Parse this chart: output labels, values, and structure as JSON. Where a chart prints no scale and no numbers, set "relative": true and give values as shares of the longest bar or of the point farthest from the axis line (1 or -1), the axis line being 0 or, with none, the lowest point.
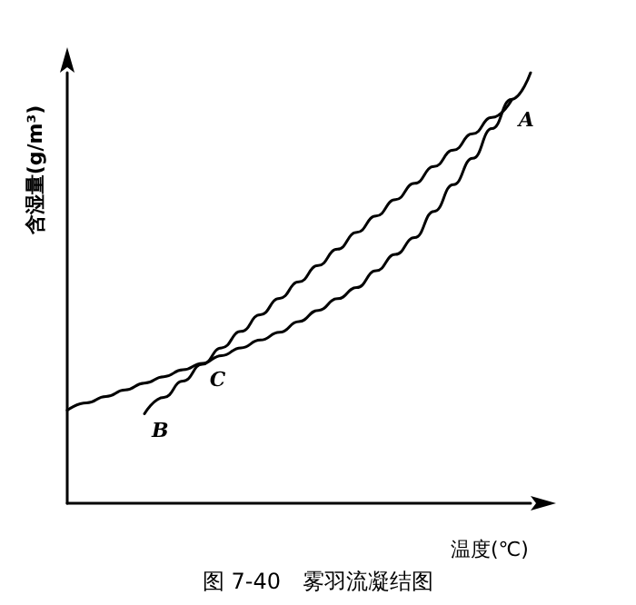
{
  "chart_data": {
    "type": "line",
    "title": "图 7-40　雾羽流凝结图",
    "xlabel": "温度(℃)",
    "ylabel": "含湿量(g/m³)",
    "relative": true,
    "grid": false,
    "marker": "none",
    "line_style": "solid",
    "categories": [
      null,
      null,
      null,
      null,
      null,
      null,
      null,
      null,
      null,
      null,
      null,
      null,
      null,
      null,
      null,
      null,
      null,
      null,
      null,
      null,
      null,
      null,
      null,
      null,
      null
    ],
    "series": [
      {
        "color": "#000000",
        "values": [
          0.216,
          0.233,
          0.248,
          0.263,
          0.279,
          0.294,
          0.31,
          0.325,
          0.343,
          0.361,
          0.379,
          0.397,
          0.422,
          0.448,
          0.475,
          0.501,
          0.54,
          0.578,
          0.617,
          0.678,
          0.74,
          0.801,
          0.87,
          0.938,
          1
        ]
      },
      {
        "color": "#000000",
        "values": [
          null,
          null,
          null,
          null,
          0.208,
          0.246,
          0.284,
          0.323,
          0.361,
          0.399,
          0.438,
          0.476,
          0.514,
          0.552,
          0.59,
          0.629,
          0.667,
          0.705,
          0.743,
          0.782,
          0.82,
          0.858,
          0.896,
          0.935,
          null
        ]
      }
    ],
    "annotations": [
      "A",
      "C",
      "B"
    ]
  }
}
